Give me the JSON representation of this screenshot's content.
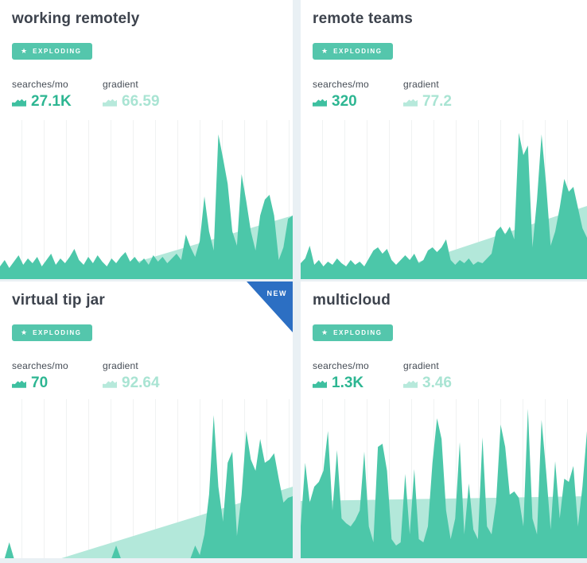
{
  "colors": {
    "page-bg": "#e9f0f4",
    "title": "#3d434d",
    "label": "#454c55",
    "badge-bg": "#54c6ac",
    "searches": "#2db692",
    "searches-icon": "#3ec0a0",
    "gradient-val": "#a9e4d3",
    "gradient-icon": "#b7e9db",
    "series": "#4cc7a9",
    "trend": "#b3e8da",
    "ribbon": "#2c6fc3",
    "grid-line": "#f0f2f2"
  },
  "cards": [
    {
      "title": "working remotely",
      "badge": {
        "label": "EXPLODING",
        "icon": "star"
      },
      "stats": {
        "searches": {
          "label": "searches/mo",
          "value": "27.1K"
        },
        "gradient": {
          "label": "gradient",
          "value": "66.59"
        }
      },
      "ribbon": null
    },
    {
      "title": "remote teams",
      "badge": {
        "label": "EXPLODING",
        "icon": "star"
      },
      "stats": {
        "searches": {
          "label": "searches/mo",
          "value": "320"
        },
        "gradient": {
          "label": "gradient",
          "value": "77.2"
        }
      },
      "ribbon": null
    },
    {
      "title": "virtual tip jar",
      "badge": {
        "label": "EXPLODING",
        "icon": "star"
      },
      "stats": {
        "searches": {
          "label": "searches/mo",
          "value": "70"
        },
        "gradient": {
          "label": "gradient",
          "value": "92.64"
        }
      },
      "ribbon": {
        "label": "NEW"
      }
    },
    {
      "title": "multicloud",
      "badge": {
        "label": "EXPLODING",
        "icon": "star"
      },
      "stats": {
        "searches": {
          "label": "searches/mo",
          "value": "1.3K"
        },
        "gradient": {
          "label": "gradient",
          "value": "3.46"
        }
      },
      "ribbon": null
    }
  ],
  "chart_data": [
    {
      "type": "area",
      "topic": "working remotely",
      "unit": "percent_of_chart_height",
      "ylim": [
        0,
        100
      ],
      "grid": "vertical-only",
      "legend": "none",
      "series": [
        8,
        12,
        7,
        11,
        15,
        9,
        13,
        10,
        14,
        8,
        12,
        16,
        9,
        13,
        10,
        14,
        19,
        12,
        9,
        14,
        10,
        15,
        11,
        8,
        13,
        10,
        14,
        17,
        11,
        14,
        10,
        13,
        9,
        15,
        11,
        14,
        10,
        13,
        16,
        12,
        28,
        20,
        14,
        24,
        52,
        30,
        18,
        91,
        76,
        60,
        30,
        21,
        66,
        49,
        30,
        18,
        40,
        50,
        53,
        40,
        12,
        20,
        38,
        40
      ],
      "trend": {
        "start_x_pct": 27,
        "start_h_pct": 0,
        "end_h_pct": 40
      }
    },
    {
      "type": "area",
      "topic": "remote teams",
      "unit": "percent_of_chart_height",
      "ylim": [
        0,
        100
      ],
      "grid": "vertical-only",
      "legend": "none",
      "series": [
        10,
        13,
        21,
        9,
        12,
        8,
        11,
        9,
        13,
        10,
        8,
        12,
        9,
        11,
        8,
        13,
        18,
        20,
        16,
        19,
        12,
        9,
        12,
        15,
        12,
        16,
        10,
        12,
        18,
        20,
        17,
        20,
        25,
        12,
        9,
        12,
        10,
        13,
        9,
        11,
        10,
        13,
        16,
        30,
        33,
        28,
        33,
        25,
        92,
        78,
        84,
        20,
        50,
        91,
        60,
        21,
        30,
        45,
        63,
        55,
        58,
        45,
        32,
        26
      ],
      "trend": {
        "start_x_pct": 23,
        "start_h_pct": 0,
        "end_h_pct": 46
      }
    },
    {
      "type": "area",
      "topic": "virtual tip jar",
      "unit": "percent_of_chart_height",
      "ylim": [
        0,
        100
      ],
      "grid": "vertical-only",
      "legend": "none",
      "series": [
        0,
        0,
        10,
        0,
        0,
        0,
        0,
        0,
        0,
        0,
        0,
        0,
        0,
        0,
        0,
        0,
        0,
        0,
        0,
        0,
        0,
        0,
        0,
        0,
        0,
        8,
        0,
        0,
        0,
        0,
        0,
        0,
        0,
        0,
        0,
        0,
        0,
        0,
        0,
        0,
        0,
        0,
        8,
        2,
        15,
        40,
        90,
        45,
        23,
        60,
        67,
        14,
        40,
        80,
        62,
        55,
        75,
        60,
        62,
        66,
        50,
        35,
        38,
        39
      ],
      "trend": {
        "start_x_pct": 21,
        "start_h_pct": 0,
        "end_h_pct": 45
      }
    },
    {
      "type": "area",
      "topic": "multicloud",
      "unit": "percent_of_chart_height",
      "ylim": [
        0,
        100
      ],
      "grid": "vertical-only",
      "legend": "none",
      "series": [
        20,
        60,
        35,
        45,
        48,
        55,
        80,
        30,
        68,
        25,
        22,
        20,
        24,
        30,
        67,
        20,
        10,
        70,
        72,
        55,
        12,
        8,
        10,
        53,
        15,
        56,
        12,
        10,
        20,
        60,
        88,
        75,
        30,
        12,
        25,
        73,
        15,
        47,
        18,
        12,
        76,
        20,
        15,
        35,
        84,
        70,
        40,
        42,
        38,
        20,
        94,
        25,
        15,
        87,
        55,
        18,
        61,
        25,
        50,
        48,
        58,
        20,
        45,
        80
      ],
      "trend": {
        "start_x_pct": 0,
        "start_h_pct": 36,
        "end_h_pct": 39
      }
    }
  ]
}
